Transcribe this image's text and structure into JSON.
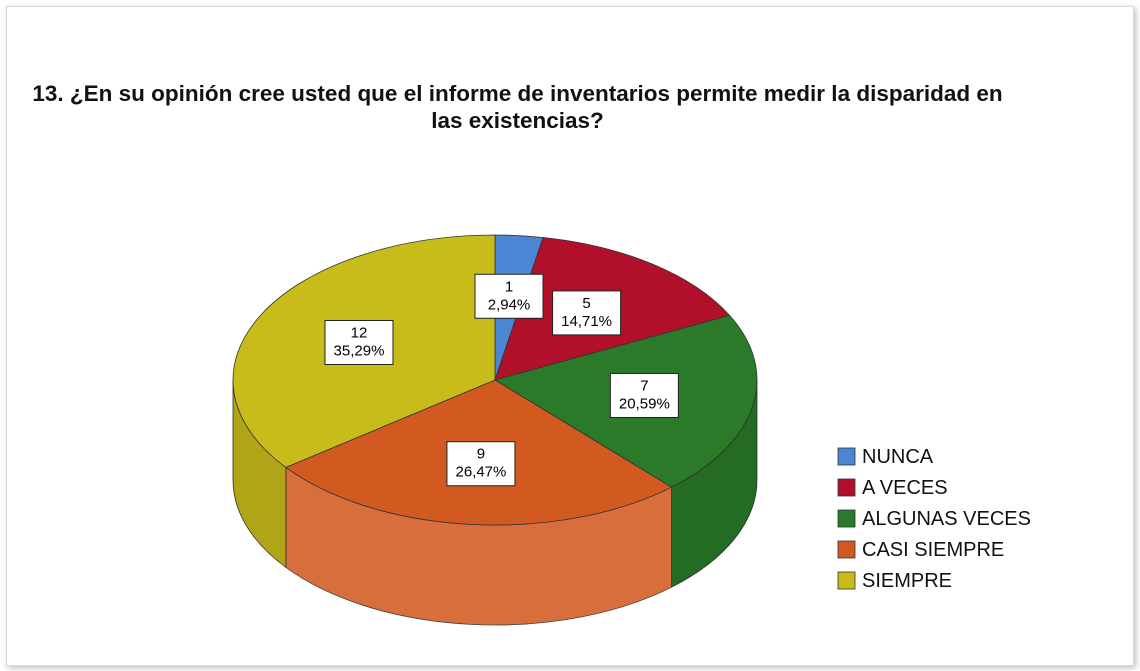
{
  "chart_data": {
    "type": "pie",
    "title": "13. ¿En su opinión cree usted que el informe de inventarios permite medir la disparidad en las existencias?",
    "categories": [
      "NUNCA",
      "A VECES",
      "ALGUNAS VECES",
      "CASI SIEMPRE",
      "SIEMPRE"
    ],
    "values": [
      1,
      5,
      7,
      9,
      12
    ],
    "percentages": [
      2.94,
      14.71,
      20.59,
      26.47,
      35.29
    ],
    "percentage_labels": [
      "2,94%",
      "14,71%",
      "20,59%",
      "26,47%",
      "35,29%"
    ],
    "colors": [
      "#4a86d4",
      "#b0102a",
      "#2a7a2a",
      "#d25a20",
      "#c8bc1a"
    ],
    "legend": "right"
  }
}
